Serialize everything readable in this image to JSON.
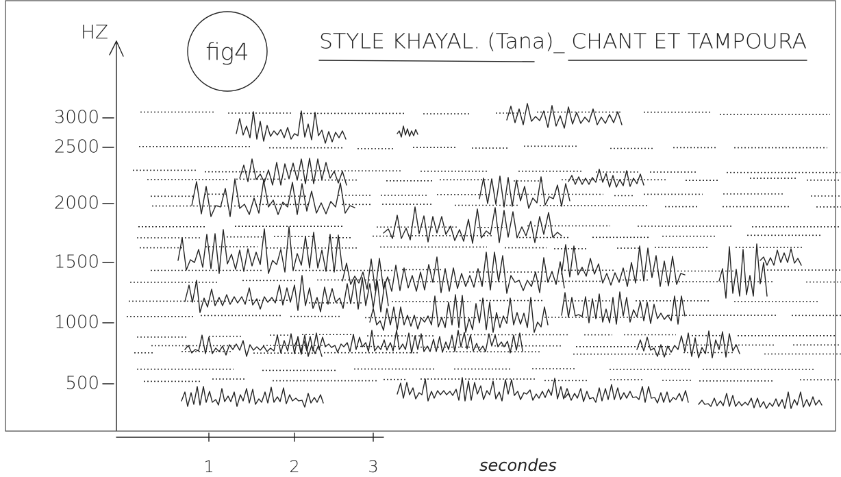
{
  "figure": {
    "label": "fig4",
    "title": "STYLE KHAYAL. (Tana)_ CHANT ET TAMPOURA",
    "y_axis_label": "HZ",
    "y_ticks": [
      3000,
      2500,
      2000,
      1500,
      1000,
      500
    ],
    "x_ticks": [
      1,
      2,
      3
    ],
    "x_axis_label": "secondes"
  }
}
